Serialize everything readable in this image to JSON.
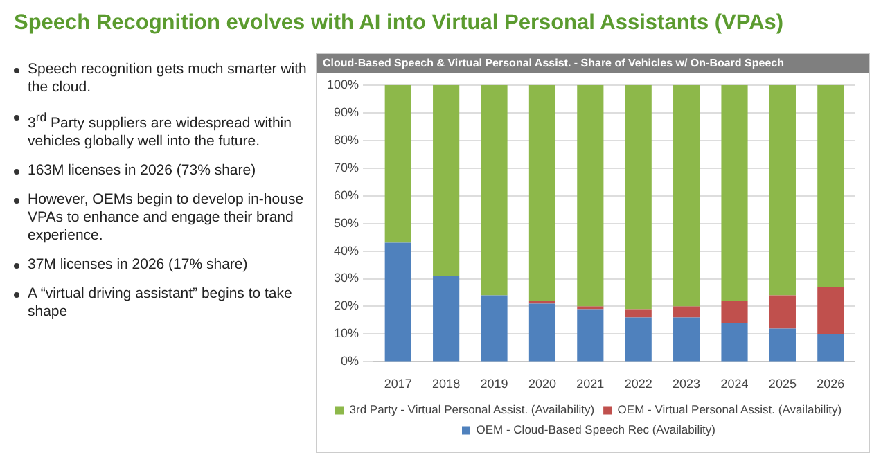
{
  "chart_data": [
    {
      "type": "other",
      "title": "Speech Recognition evolves with AI into Virtual Personal Assistants (VPAs)",
      "annotations": [
        "Speech recognition gets much smarter with the cloud.",
        "3$^{rd}$ Party suppliers are widespread within vehicles globally well into the future.",
        "163M licenses in 2026 (73% share)",
        "However, OEMs begin to develop in-house VPAs to enhance and engage their brand experience.",
        "37M licenses in 2026 (17% share)",
        "A “virtual driving assistant” begins to take shape"
      ]
    },
    {
      "type": "bar",
      "title": "Cloud-Based Speech & Virtual Personal Assist. - Share of Vehicles w/ On-Board Speech",
      "stacked": true,
      "categories": [
        "2017",
        "2018",
        "2019",
        "2020",
        "2021",
        "2022",
        "2023",
        "2024",
        "2025",
        "2026"
      ],
      "series": [
        {
          "name": "OEM - Cloud-Based Speech Rec (Availability)",
          "color": "#4f81bd",
          "values": [
            43,
            31,
            24,
            21,
            19,
            16,
            16,
            14,
            12,
            10
          ]
        },
        {
          "name": "OEM - Virtual Personal Assist. (Availability)",
          "color": "#c0504d",
          "values": [
            0,
            0,
            0,
            1,
            1,
            3,
            4,
            8,
            12,
            17
          ]
        },
        {
          "name": "3rd Party - Virtual Personal Assist. (Availability)",
          "color": "#8db84a",
          "values": [
            57,
            69,
            76,
            78,
            80,
            81,
            80,
            78,
            76,
            73
          ]
        }
      ],
      "ylim": [
        0,
        100
      ],
      "yticks": [
        {
          "value": 0,
          "label": "0%"
        },
        {
          "value": 10,
          "label": "10%"
        },
        {
          "value": 20,
          "label": "20%"
        },
        {
          "value": 30,
          "label": "30%"
        },
        {
          "value": 40,
          "label": "40%"
        },
        {
          "value": 50,
          "label": "50%"
        },
        {
          "value": 60,
          "label": "60%"
        },
        {
          "value": 70,
          "label": "70%"
        },
        {
          "value": 80,
          "label": "80%"
        },
        {
          "value": 90,
          "label": "90%"
        },
        {
          "value": 100,
          "label": "100%"
        }
      ],
      "grid": "y",
      "legend": "bottom"
    }
  ]
}
